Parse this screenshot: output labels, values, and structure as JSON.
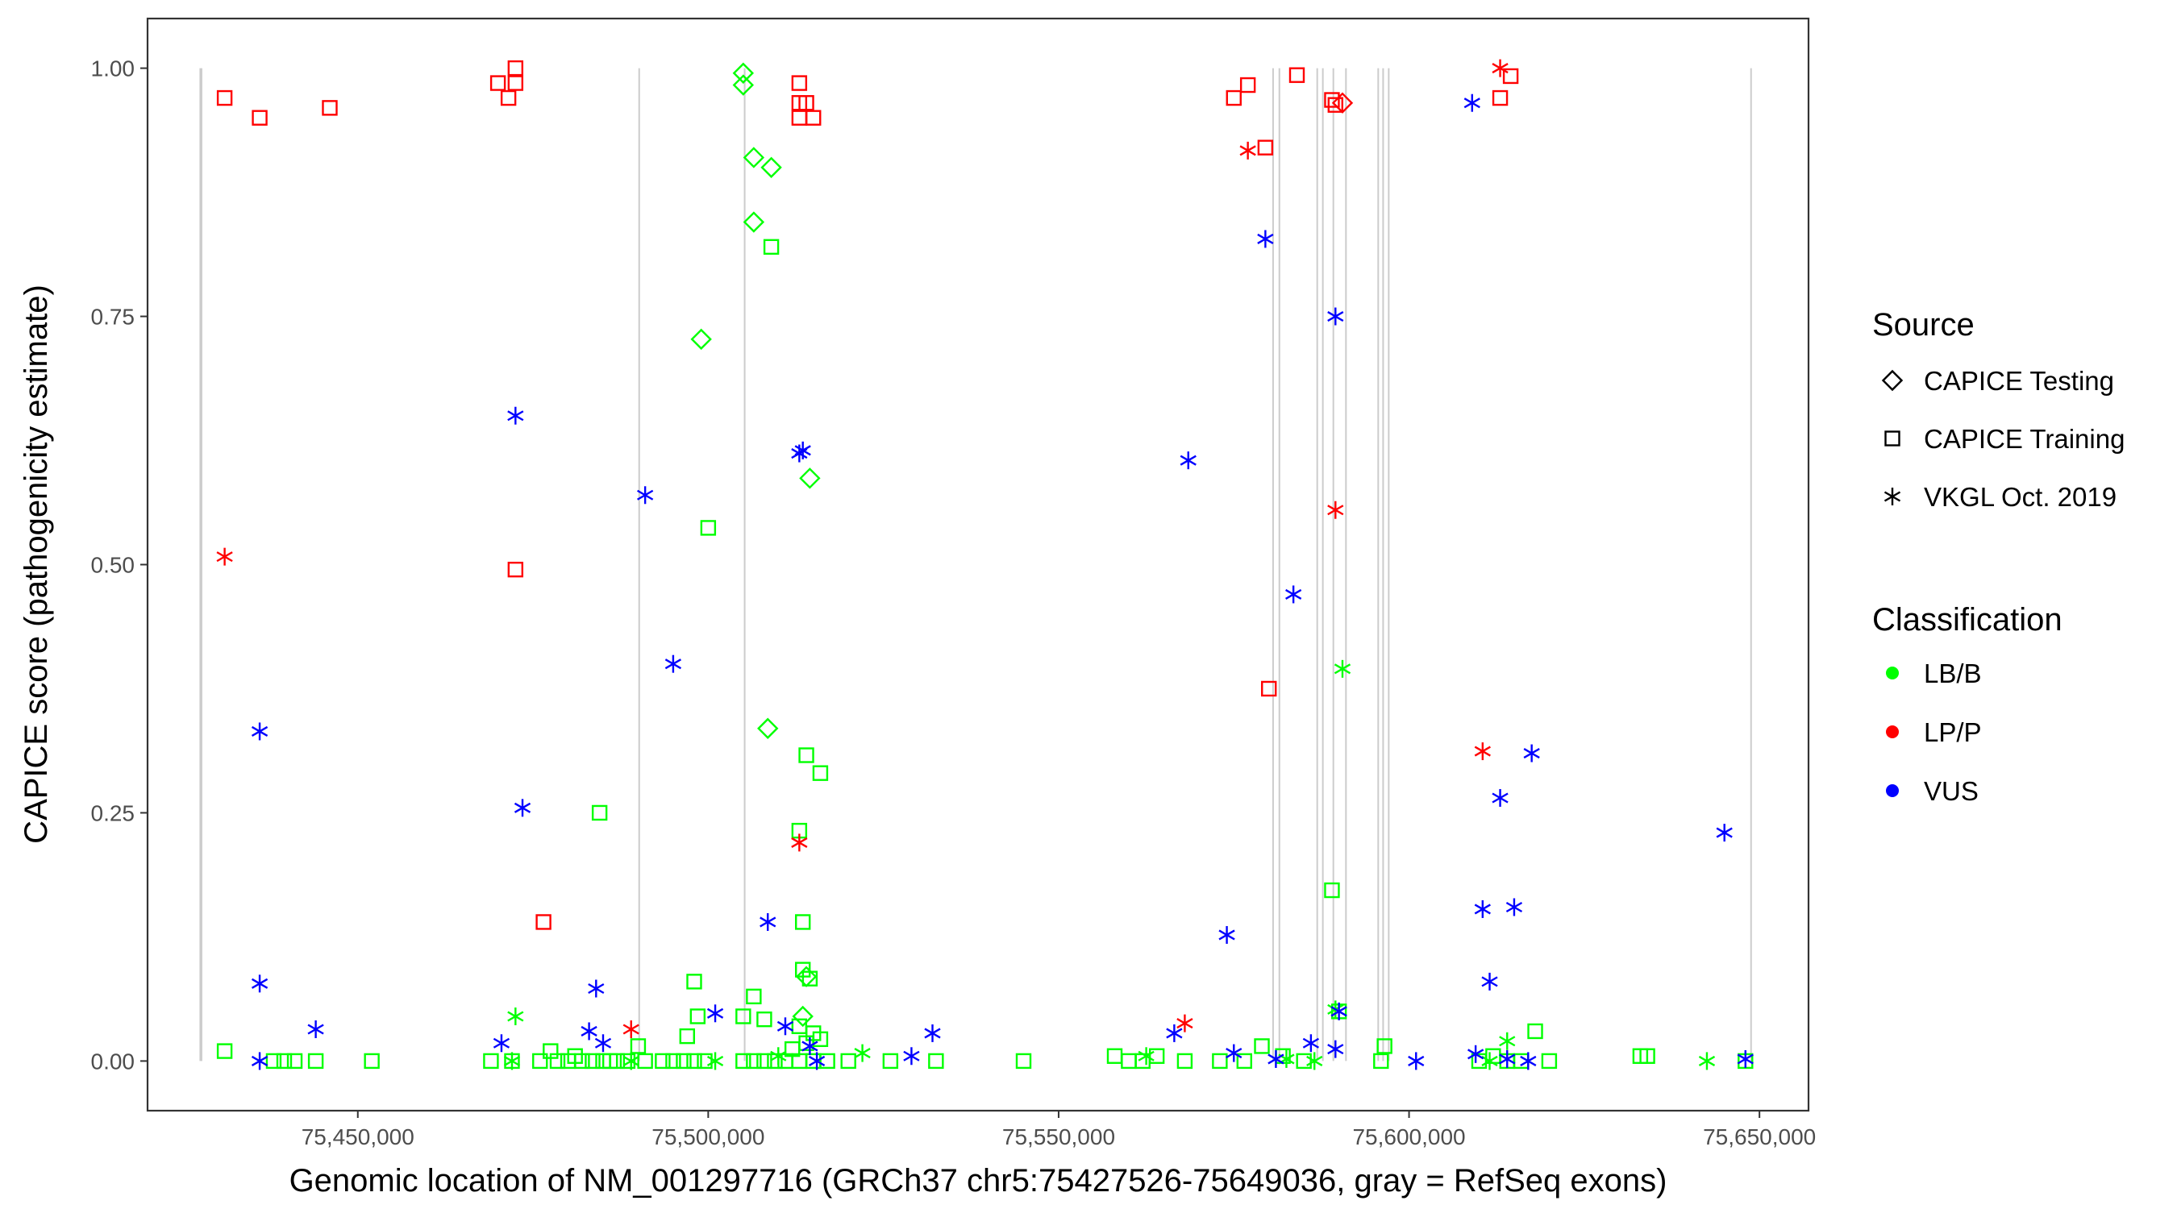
{
  "chart_data": {
    "type": "scatter",
    "xlabel": "Genomic location of NM_001297716 (GRCh37 chr5:75427526-75649036, gray = RefSeq exons)",
    "ylabel": "CAPICE score (pathogenicity estimate)",
    "xlim": [
      75420000,
      75657000
    ],
    "ylim": [
      -0.05,
      1.05
    ],
    "x_ticks": [
      75450000,
      75500000,
      75550000,
      75600000,
      75650000
    ],
    "x_tick_labels": [
      "75,450,000",
      "75,500,000",
      "75,550,000",
      "75,600,000",
      "75,650,000"
    ],
    "y_ticks": [
      0,
      0.25,
      0.5,
      0.75,
      1
    ],
    "y_tick_labels": [
      "0.00",
      "0.25",
      "0.50",
      "0.75",
      "1.00"
    ],
    "grid": false,
    "exons": [
      75427526,
      75427700,
      75490150,
      75505200,
      75580600,
      75581500,
      75586900,
      75587700,
      75589200,
      75591000,
      75595600,
      75596300,
      75597100,
      75648800
    ],
    "legend_placement": "right",
    "legend": {
      "source_title": "Source",
      "source_entries": [
        {
          "shape": "diamond",
          "label": "CAPICE Testing"
        },
        {
          "shape": "square",
          "label": "CAPICE Training"
        },
        {
          "shape": "asterisk",
          "label": "VKGL Oct. 2019"
        }
      ],
      "class_title": "Classification",
      "class_entries": [
        {
          "name": "LB/B",
          "color": "#00ff00"
        },
        {
          "name": "LP/P",
          "color": "#ff0000"
        },
        {
          "name": "VUS",
          "color": "#0000ff"
        }
      ]
    },
    "colors": {
      "LB/B": "#00ff00",
      "LP/P": "#ff0000",
      "VUS": "#0000ff",
      "exon": "#cccccc"
    },
    "series": [
      {
        "source": "CAPICE Training",
        "classification": "LP/P",
        "shape": "square",
        "points": [
          [
            75431000,
            0.97
          ],
          [
            75436000,
            0.95
          ],
          [
            75446000,
            0.96
          ],
          [
            75470000,
            0.985
          ],
          [
            75472500,
            0.985
          ],
          [
            75472500,
            1.0
          ],
          [
            75471500,
            0.97
          ],
          [
            75472500,
            0.495
          ],
          [
            75476500,
            0.14
          ],
          [
            75513000,
            0.985
          ],
          [
            75513000,
            0.965
          ],
          [
            75514000,
            0.965
          ],
          [
            75513000,
            0.95
          ],
          [
            75515000,
            0.95
          ],
          [
            75575000,
            0.97
          ],
          [
            75577000,
            0.983
          ],
          [
            75579500,
            0.92
          ],
          [
            75584000,
            0.993
          ],
          [
            75580000,
            0.375
          ],
          [
            75589000,
            0.968
          ],
          [
            75589500,
            0.963
          ],
          [
            75613000,
            0.97
          ],
          [
            75614500,
            0.992
          ]
        ]
      },
      {
        "source": "CAPICE Training",
        "classification": "LB/B",
        "shape": "square",
        "points": [
          [
            75431000,
            0.01
          ],
          [
            75438000,
            0
          ],
          [
            75439500,
            0
          ],
          [
            75441000,
            0
          ],
          [
            75444000,
            0
          ],
          [
            75452000,
            0
          ],
          [
            75484500,
            0.25
          ],
          [
            75500000,
            0.537
          ],
          [
            75498000,
            0.08
          ],
          [
            75497000,
            0.025
          ],
          [
            75498500,
            0.045
          ],
          [
            75509000,
            0.82
          ],
          [
            75505000,
            0.045
          ],
          [
            75506500,
            0.065
          ],
          [
            75508000,
            0.042
          ],
          [
            75513000,
            0.232
          ],
          [
            75514000,
            0.308
          ],
          [
            75516000,
            0.29
          ],
          [
            75513500,
            0.14
          ],
          [
            75513500,
            0.092
          ],
          [
            75514500,
            0.083
          ],
          [
            75513000,
            0.035
          ],
          [
            75515000,
            0.028
          ],
          [
            75516000,
            0.022
          ],
          [
            75514000,
            0.018
          ],
          [
            75512000,
            0.012
          ],
          [
            75469000,
            0
          ],
          [
            75472000,
            0
          ],
          [
            75476000,
            0
          ],
          [
            75477500,
            0.01
          ],
          [
            75478500,
            0
          ],
          [
            75480000,
            0
          ],
          [
            75481000,
            0.005
          ],
          [
            75482000,
            0
          ],
          [
            75483500,
            0
          ],
          [
            75485000,
            0
          ],
          [
            75486000,
            0
          ],
          [
            75487000,
            0
          ],
          [
            75488500,
            0
          ],
          [
            75490000,
            0.015
          ],
          [
            75491000,
            0
          ],
          [
            75493500,
            0
          ],
          [
            75495000,
            0
          ],
          [
            75496500,
            0
          ],
          [
            75498000,
            0
          ],
          [
            75499500,
            0
          ],
          [
            75505000,
            0
          ],
          [
            75506500,
            0
          ],
          [
            75508000,
            0
          ],
          [
            75509500,
            0
          ],
          [
            75511000,
            0
          ],
          [
            75513000,
            0
          ],
          [
            75515000,
            0
          ],
          [
            75517000,
            0
          ],
          [
            75520000,
            0
          ],
          [
            75526000,
            0
          ],
          [
            75532500,
            0
          ],
          [
            75545000,
            0
          ],
          [
            75558000,
            0.005
          ],
          [
            75560000,
            0
          ],
          [
            75562000,
            0
          ],
          [
            75564000,
            0.005
          ],
          [
            75568000,
            0
          ],
          [
            75573000,
            0
          ],
          [
            75576500,
            0
          ],
          [
            75579000,
            0.015
          ],
          [
            75582000,
            0.005
          ],
          [
            75585000,
            0
          ],
          [
            75589000,
            0.172
          ],
          [
            75590000,
            0.05
          ],
          [
            75596500,
            0.015
          ],
          [
            75596000,
            0
          ],
          [
            75610000,
            0
          ],
          [
            75612000,
            0.005
          ],
          [
            75614000,
            0
          ],
          [
            75616000,
            0
          ],
          [
            75618000,
            0.03
          ],
          [
            75620000,
            0
          ],
          [
            75633000,
            0.005
          ],
          [
            75634000,
            0.005
          ],
          [
            75648000,
            0
          ]
        ]
      },
      {
        "source": "CAPICE Testing",
        "classification": "LB/B",
        "shape": "diamond",
        "points": [
          [
            75505000,
            0.995
          ],
          [
            75505000,
            0.983
          ],
          [
            75506500,
            0.91
          ],
          [
            75509000,
            0.9
          ],
          [
            75506500,
            0.845
          ],
          [
            75499000,
            0.727
          ],
          [
            75514500,
            0.587
          ],
          [
            75508500,
            0.335
          ],
          [
            75514000,
            0.085
          ],
          [
            75513500,
            0.045
          ]
        ]
      },
      {
        "source": "CAPICE Testing",
        "classification": "LP/P",
        "shape": "diamond",
        "points": [
          [
            75590500,
            0.965
          ]
        ]
      },
      {
        "source": "VKGL Oct. 2019",
        "classification": "LP/P",
        "shape": "asterisk",
        "points": [
          [
            75431000,
            0.508
          ],
          [
            75489000,
            0.032
          ],
          [
            75513000,
            0.22
          ],
          [
            75568000,
            0.038
          ],
          [
            75577000,
            0.917
          ],
          [
            75589500,
            0.555
          ],
          [
            75610500,
            0.312
          ],
          [
            75613000,
            1.0
          ]
        ]
      },
      {
        "source": "VKGL Oct. 2019",
        "classification": "LB/B",
        "shape": "asterisk",
        "points": [
          [
            75472500,
            0.045
          ],
          [
            75472000,
            0
          ],
          [
            75489000,
            0
          ],
          [
            75501000,
            0
          ],
          [
            75510000,
            0.005
          ],
          [
            75522000,
            0.008
          ],
          [
            75562500,
            0.005
          ],
          [
            75582500,
            0.002
          ],
          [
            75586500,
            0
          ],
          [
            75589500,
            0.052
          ],
          [
            75590500,
            0.395
          ],
          [
            75611500,
            0
          ],
          [
            75614000,
            0.02
          ],
          [
            75642500,
            0
          ]
        ]
      },
      {
        "source": "VKGL Oct. 2019",
        "classification": "VUS",
        "shape": "asterisk",
        "points": [
          [
            75436000,
            0.332
          ],
          [
            75436000,
            0.078
          ],
          [
            75436000,
            0
          ],
          [
            75444000,
            0.032
          ],
          [
            75470500,
            0.018
          ],
          [
            75472500,
            0.65
          ],
          [
            75473500,
            0.255
          ],
          [
            75483000,
            0.03
          ],
          [
            75484000,
            0.073
          ],
          [
            75485000,
            0.018
          ],
          [
            75491000,
            0.57
          ],
          [
            75495000,
            0.4
          ],
          [
            75501000,
            0.048
          ],
          [
            75508500,
            0.14
          ],
          [
            75511000,
            0.035
          ],
          [
            75513000,
            0.612
          ],
          [
            75513500,
            0.615
          ],
          [
            75514500,
            0.015
          ],
          [
            75515500,
            0
          ],
          [
            75529000,
            0.005
          ],
          [
            75532000,
            0.028
          ],
          [
            75566500,
            0.028
          ],
          [
            75568500,
            0.605
          ],
          [
            75574000,
            0.127
          ],
          [
            75575000,
            0.008
          ],
          [
            75579500,
            0.828
          ],
          [
            75581000,
            0.002
          ],
          [
            75583500,
            0.47
          ],
          [
            75586000,
            0.018
          ],
          [
            75589500,
            0.75
          ],
          [
            75590000,
            0.05
          ],
          [
            75589500,
            0.012
          ],
          [
            75601000,
            0
          ],
          [
            75609000,
            0.965
          ],
          [
            75609500,
            0.007
          ],
          [
            75610500,
            0.153
          ],
          [
            75611500,
            0.08
          ],
          [
            75613000,
            0.265
          ],
          [
            75615000,
            0.155
          ],
          [
            75617500,
            0.31
          ],
          [
            75614000,
            0.002
          ],
          [
            75617000,
            0
          ],
          [
            75645000,
            0.23
          ],
          [
            75648000,
            0.002
          ]
        ]
      }
    ]
  }
}
